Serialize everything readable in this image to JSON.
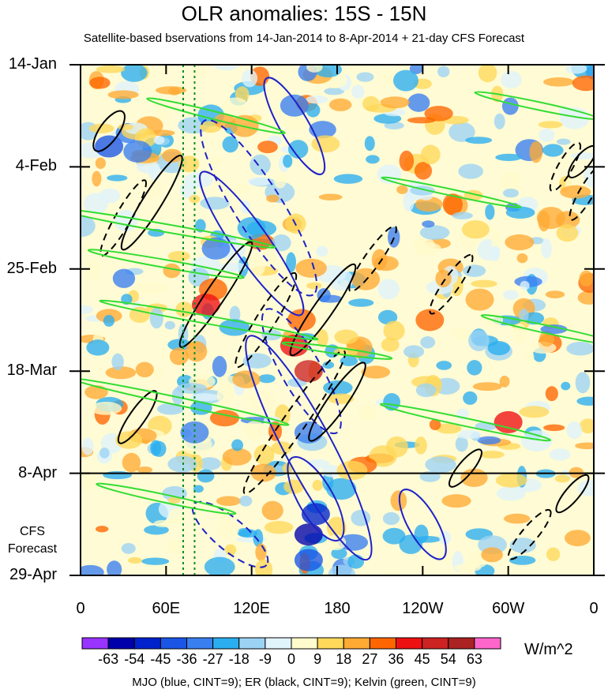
{
  "chart_data": {
    "type": "heatmap",
    "title": "OLR anomalies: 15S - 15N",
    "subtitle": "Satellite-based bservations from 14-Jan-2014 to 8-Apr-2014 + 21-day CFS Forecast",
    "x_tick_labels": [
      "0",
      "60E",
      "120E",
      "180",
      "120W",
      "60W",
      "0"
    ],
    "x_ticks_deg_east": [
      0,
      60,
      120,
      180,
      240,
      300,
      360
    ],
    "y_tick_labels": [
      "14-Jan",
      "4-Feb",
      "25-Feb",
      "18-Mar",
      "8-Apr",
      "29-Apr"
    ],
    "y_tick_dates": [
      "2014-01-14",
      "2014-02-04",
      "2014-02-25",
      "2014-03-18",
      "2014-04-08",
      "2014-04-29"
    ],
    "forecast_start": "8-Apr",
    "forecast_label": [
      "CFS",
      "Forecast"
    ],
    "colorbar_levels": [
      "-63",
      "-54",
      "-45",
      "-36",
      "-27",
      "-18",
      "-9",
      "0",
      "9",
      "18",
      "27",
      "36",
      "45",
      "54",
      "63"
    ],
    "colorbar_colors": [
      "#9933ff",
      "#0000aa",
      "#0022cc",
      "#1a55e6",
      "#3a7fef",
      "#2aaef0",
      "#9cd3f5",
      "#dff4fb",
      "#fffbcc",
      "#ffd95a",
      "#ffaa33",
      "#ff6600",
      "#ee1111",
      "#cc2222",
      "#aa2222",
      "#ff66cc"
    ],
    "units": "W/m^2",
    "reference_longitudes_deg_east": [
      72,
      80
    ],
    "footnote": "MJO (blue, CINT=9); ER (black, CINT=9); Kelvin (green, CINT=9)"
  }
}
